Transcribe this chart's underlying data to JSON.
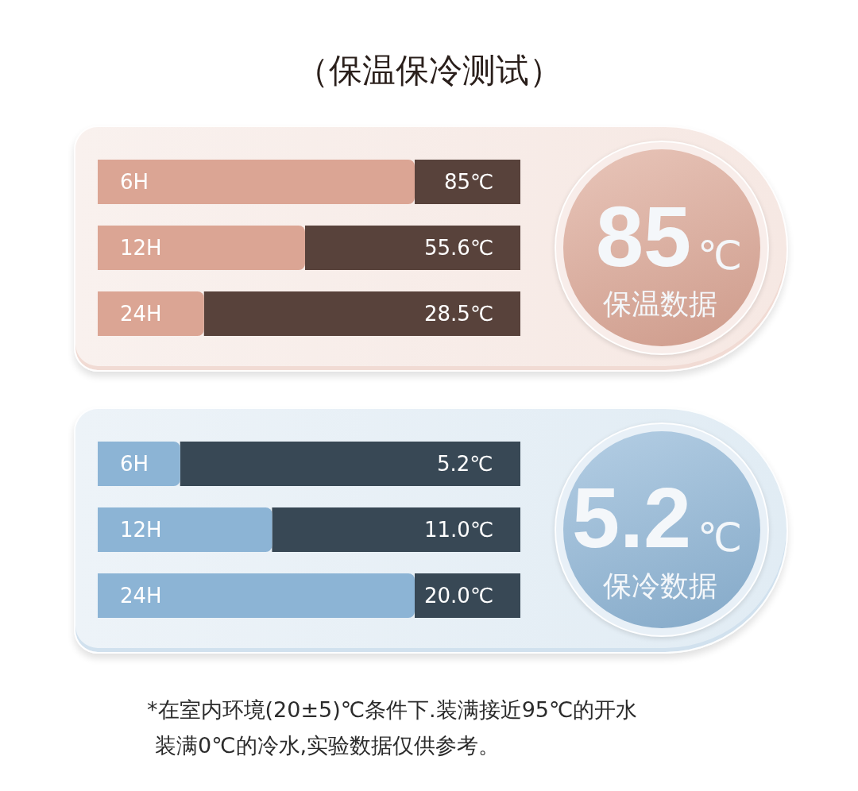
{
  "chart_data": [
    {
      "type": "bar",
      "title": "（保温保冷测试）",
      "orientation": "horizontal",
      "categories": [
        "6H",
        "12H",
        "24H"
      ],
      "series": [
        {
          "color": "#dba594",
          "values": [
            85,
            55.6,
            28.5
          ],
          "value_labels": [
            "85℃",
            "55.6℃",
            "28.5℃"
          ]
        }
      ],
      "annotations": [
        "85",
        "℃",
        "保温数据"
      ]
    },
    {
      "type": "bar",
      "orientation": "horizontal",
      "categories": [
        "6H",
        "12H",
        "24H"
      ],
      "series": [
        {
          "color": "#8cb4d5",
          "values": [
            5.2,
            11.0,
            20.0
          ],
          "value_labels": [
            "5.2℃",
            "11.0℃",
            "20.0℃"
          ]
        }
      ],
      "annotations": [
        "5.2",
        "℃",
        "保冷数据",
        "*在室内环境(20±5)℃条件下.装满接近95℃的开水",
        "装满0℃的冷水,实验数据仅供参考。"
      ]
    }
  ]
}
